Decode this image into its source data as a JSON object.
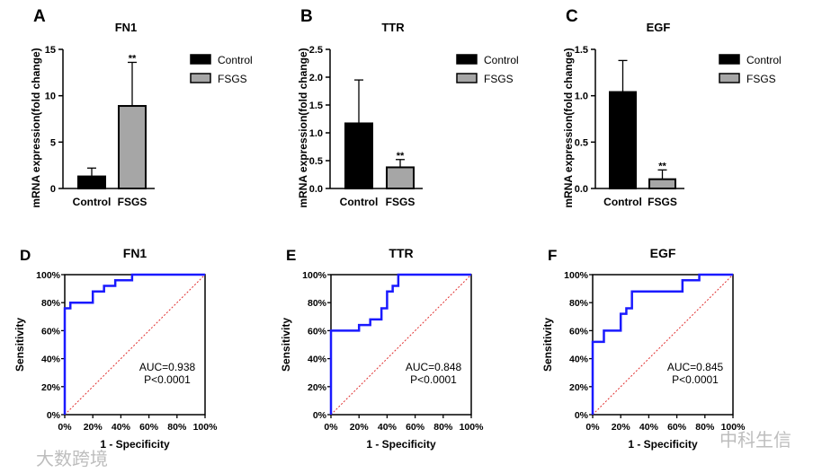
{
  "chart_data": [
    {
      "panel": "A",
      "type": "bar",
      "title": "FN1",
      "ylabel": "mRNA expression(fold change)",
      "categories": [
        "Control",
        "FSGS"
      ],
      "values": [
        1.3,
        8.9
      ],
      "errors_upper": [
        2.2,
        13.6
      ],
      "ylim": [
        0,
        15
      ],
      "yticks": [
        0,
        5,
        10,
        15
      ],
      "significance": [
        "",
        "**"
      ],
      "legend": [
        "Control",
        "FSGS"
      ],
      "legend_position": "right",
      "colors": [
        "#000000",
        "#a6a6a6"
      ]
    },
    {
      "panel": "B",
      "type": "bar",
      "title": "TTR",
      "ylabel": "mRNA expression(fold change)",
      "categories": [
        "Control",
        "FSGS"
      ],
      "values": [
        1.17,
        0.38
      ],
      "errors_upper": [
        1.95,
        0.52
      ],
      "ylim": [
        0,
        2.5
      ],
      "yticks": [
        0.0,
        0.5,
        1.0,
        1.5,
        2.0,
        2.5
      ],
      "significance": [
        "",
        "**"
      ],
      "legend": [
        "Control",
        "FSGS"
      ],
      "legend_position": "right",
      "colors": [
        "#000000",
        "#a6a6a6"
      ]
    },
    {
      "panel": "C",
      "type": "bar",
      "title": "EGF",
      "ylabel": "mRNA expression(fold change)",
      "categories": [
        "Control",
        "FSGS"
      ],
      "values": [
        1.04,
        0.1
      ],
      "errors_upper": [
        1.38,
        0.2
      ],
      "ylim": [
        0,
        1.5
      ],
      "yticks": [
        0.0,
        0.5,
        1.0,
        1.5
      ],
      "significance": [
        "",
        "**"
      ],
      "legend": [
        "Control",
        "FSGS"
      ],
      "legend_position": "right",
      "colors": [
        "#000000",
        "#a6a6a6"
      ]
    },
    {
      "panel": "D",
      "type": "line",
      "title": "FN1",
      "xlabel": "1 - Specificity",
      "ylabel": "Sensitivity",
      "xlim": [
        0,
        100
      ],
      "ylim": [
        0,
        100
      ],
      "ticks": [
        0,
        20,
        40,
        60,
        80,
        100
      ],
      "auc": "AUC=0.938",
      "p": "P<0.0001",
      "line_color": "#1a1aff",
      "ref_color": "#e03030",
      "roc": [
        [
          0,
          0
        ],
        [
          0,
          76
        ],
        [
          4,
          76
        ],
        [
          4,
          80
        ],
        [
          20,
          80
        ],
        [
          20,
          88
        ],
        [
          28,
          88
        ],
        [
          28,
          92
        ],
        [
          36,
          92
        ],
        [
          36,
          96
        ],
        [
          48,
          96
        ],
        [
          48,
          100
        ],
        [
          100,
          100
        ]
      ]
    },
    {
      "panel": "E",
      "type": "line",
      "title": "TTR",
      "xlabel": "1 - Specificity",
      "ylabel": "Sensitivity",
      "xlim": [
        0,
        100
      ],
      "ylim": [
        0,
        100
      ],
      "ticks": [
        0,
        20,
        40,
        60,
        80,
        100
      ],
      "auc": "AUC=0.848",
      "p": "P<0.0001",
      "line_color": "#1a1aff",
      "ref_color": "#e03030",
      "roc": [
        [
          0,
          0
        ],
        [
          0,
          60
        ],
        [
          20,
          60
        ],
        [
          20,
          64
        ],
        [
          28,
          64
        ],
        [
          28,
          68
        ],
        [
          36,
          68
        ],
        [
          36,
          76
        ],
        [
          40,
          76
        ],
        [
          40,
          88
        ],
        [
          44,
          88
        ],
        [
          44,
          92
        ],
        [
          48,
          92
        ],
        [
          48,
          100
        ],
        [
          100,
          100
        ]
      ]
    },
    {
      "panel": "F",
      "type": "line",
      "title": "EGF",
      "xlabel": "1 - Specificity",
      "ylabel": "Sensitivity",
      "xlim": [
        0,
        100
      ],
      "ylim": [
        0,
        100
      ],
      "ticks": [
        0,
        20,
        40,
        60,
        80,
        100
      ],
      "auc": "AUC=0.845",
      "p": "P<0.0001",
      "line_color": "#1a1aff",
      "ref_color": "#e03030",
      "roc": [
        [
          0,
          0
        ],
        [
          0,
          52
        ],
        [
          8,
          52
        ],
        [
          8,
          60
        ],
        [
          20,
          60
        ],
        [
          20,
          72
        ],
        [
          24,
          72
        ],
        [
          24,
          76
        ],
        [
          28,
          76
        ],
        [
          28,
          88
        ],
        [
          64,
          88
        ],
        [
          64,
          96
        ],
        [
          76,
          96
        ],
        [
          76,
          100
        ],
        [
          100,
          100
        ]
      ]
    }
  ],
  "watermarks": [
    "大数跨境",
    "中科生信"
  ]
}
